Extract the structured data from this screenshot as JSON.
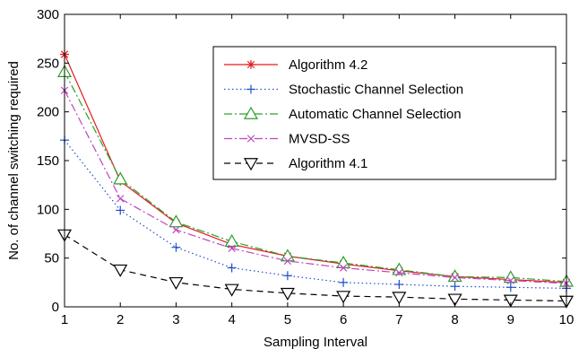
{
  "chart_data": {
    "type": "line",
    "title": "",
    "xlabel": "Sampling Interval",
    "ylabel": "No. of channel switching required",
    "xlim": [
      1,
      10
    ],
    "ylim": [
      0,
      300
    ],
    "xticks": [
      1,
      2,
      3,
      4,
      5,
      6,
      7,
      8,
      9,
      10
    ],
    "yticks": [
      0,
      50,
      100,
      150,
      200,
      250,
      300
    ],
    "grid": false,
    "legend_position": "top-right",
    "x": [
      1,
      2,
      3,
      4,
      5,
      6,
      7,
      8,
      9,
      10
    ],
    "series": [
      {
        "name": "Algorithm 4.2",
        "color": "#e41a1c",
        "dash": "solid",
        "marker": "star",
        "values": [
          259,
          129,
          86,
          64,
          52,
          44,
          37,
          31,
          28,
          25
        ]
      },
      {
        "name": "Stochastic Channel Selection",
        "color": "#1f4fcc",
        "dash": "dotted",
        "marker": "plus",
        "values": [
          171,
          99,
          61,
          40,
          32,
          25,
          23,
          21,
          20,
          19
        ]
      },
      {
        "name": "Automatic Channel Selection",
        "color": "#2ca02c",
        "dash": "dashdot",
        "marker": "triangle-up",
        "values": [
          241,
          131,
          87,
          67,
          52,
          45,
          38,
          31,
          30,
          26
        ]
      },
      {
        "name": "MVSD-SS",
        "color": "#c044c0",
        "dash": "dashdot",
        "marker": "x",
        "values": [
          222,
          111,
          79,
          60,
          47,
          40,
          35,
          30,
          27,
          24
        ]
      },
      {
        "name": "Algorithm 4.1",
        "color": "#000000",
        "dash": "dashed",
        "marker": "triangle-down",
        "values": [
          74,
          38,
          25,
          18,
          14,
          11,
          10,
          8,
          7,
          6
        ]
      }
    ]
  }
}
